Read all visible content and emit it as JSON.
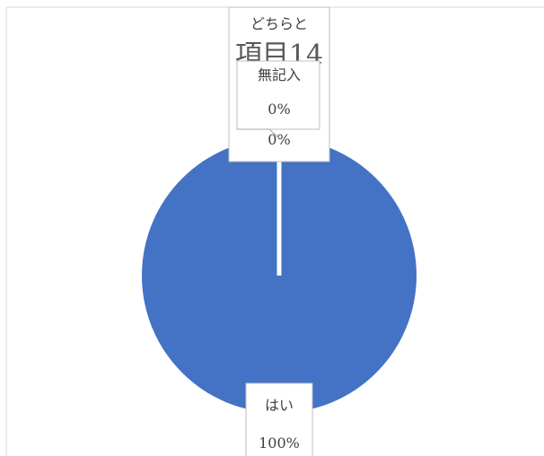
{
  "chart_data": {
    "type": "pie",
    "title": "項目14",
    "categories": [
      "はい",
      "どちらとも",
      "無記入"
    ],
    "values": [
      100,
      0,
      0
    ],
    "percent_labels": [
      "100%",
      "0%",
      "0%"
    ],
    "legend": "none",
    "colors": {
      "slice_main": "#4472c4",
      "slice_border": "#ffffff"
    }
  },
  "labels": {
    "dochira_visible": "どちらと",
    "hai": "はい",
    "hai_pct": "100%",
    "dochira_pct": "0%",
    "mukinyu": "無記入",
    "mukinyu_pct": "0%"
  }
}
